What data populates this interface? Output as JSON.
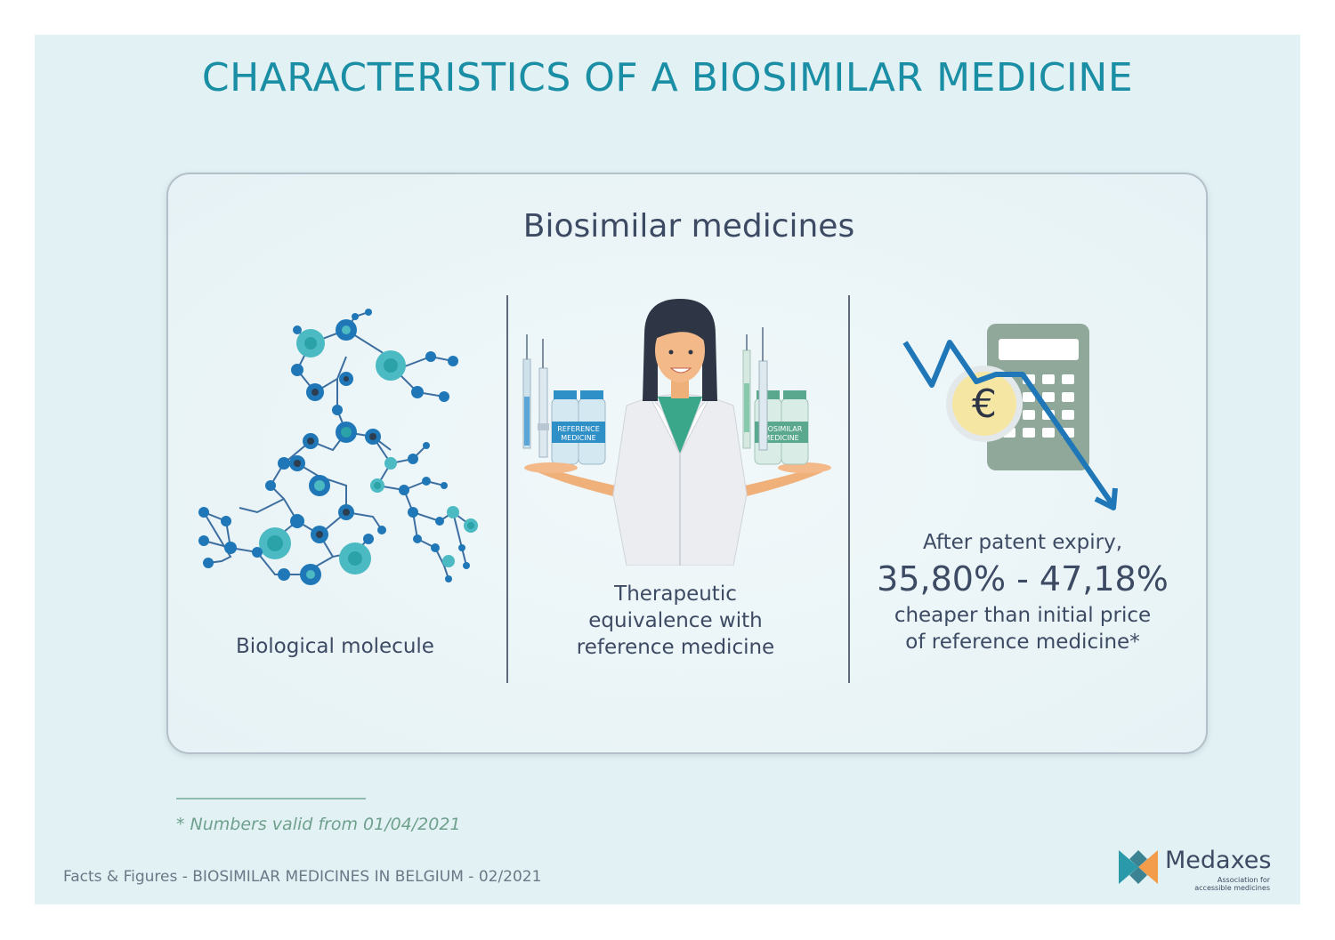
{
  "title": "CHARACTERISTICS OF A BIOSIMILAR MEDICINE",
  "card": {
    "title": "Biosimilar medicines",
    "columns": {
      "molecule": {
        "label": "Biological molecule"
      },
      "equivalence": {
        "line1": "Therapeutic",
        "line2": "equivalence with",
        "line3": "reference medicine",
        "vial_reference_1": "REFERENCE",
        "vial_reference_2": "MEDICINE",
        "vial_biosimilar_1": "BIOSIMILAR",
        "vial_biosimilar_2": "MEDICINE"
      },
      "price": {
        "line1": "After patent expiry,",
        "range": "35,80% - 47,18%",
        "line2": "cheaper than initial price",
        "line3": "of reference medicine*",
        "currency_symbol": "€"
      }
    }
  },
  "footnote": "* Numbers valid from 01/04/2021",
  "footer": "Facts & Figures - BIOSIMILAR MEDICINES IN BELGIUM - 02/2021",
  "logo": {
    "name": "Medaxes",
    "tagline_1": "Association for",
    "tagline_2": "accessible medicines"
  },
  "colors": {
    "title": "#1a8ea4",
    "text": "#3d4a63",
    "background": "#e2f1f3",
    "accent_blue": "#1f77b8",
    "accent_teal": "#4bbac2",
    "calculator": "#8fa89a",
    "footnote": "#6fa08d",
    "logo_orange": "#f39c4a",
    "logo_teal": "#2a9aab"
  },
  "icons": [
    "molecule-icon",
    "pharmacist-icon",
    "calculator-icon",
    "euro-coin-icon",
    "down-trend-arrow-icon",
    "medaxes-logo-icon"
  ]
}
